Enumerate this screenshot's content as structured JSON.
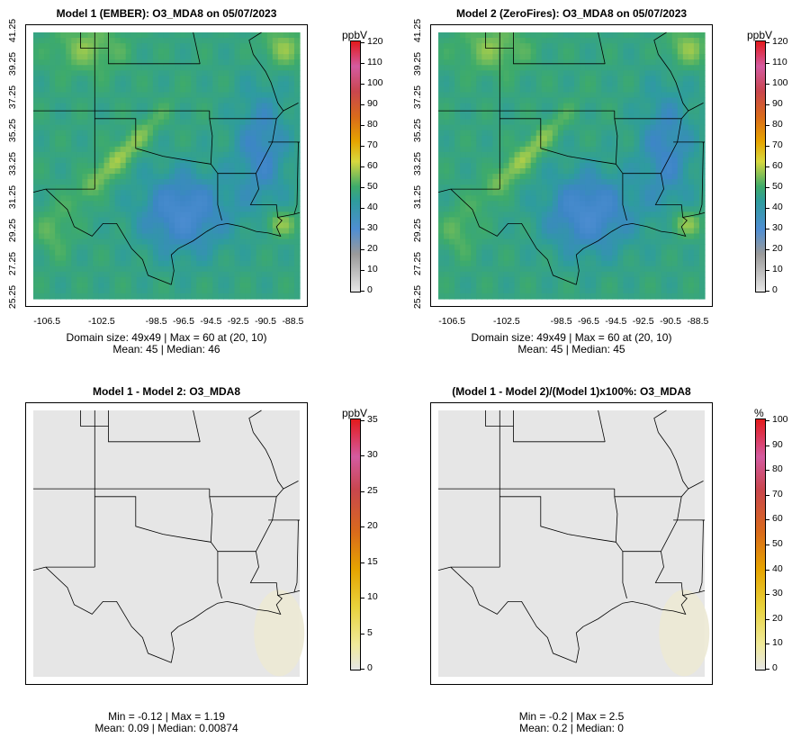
{
  "panels": [
    {
      "title": "Model 1 (EMBER): O3_MDA8 on 05/07/2023",
      "stats_line1": "Domain size: 49x49 | Max = 60 at (20, 10)",
      "stats_line2": "Mean: 45 |  Median: 46",
      "field": "ozone",
      "colorbar": {
        "unit": "ppbV",
        "ticks": [
          "120",
          "110",
          "100",
          "90",
          "80",
          "70",
          "60",
          "50",
          "40",
          "30",
          "20",
          "10",
          "0"
        ]
      },
      "show_axes": true
    },
    {
      "title": "Model 2 (ZeroFires): O3_MDA8 on 05/07/2023",
      "stats_line1": "Domain size: 49x49 | Max = 60 at (20, 10)",
      "stats_line2": "Mean: 45 |  Median: 45",
      "field": "ozone",
      "colorbar": {
        "unit": "ppbV",
        "ticks": [
          "120",
          "110",
          "100",
          "90",
          "80",
          "70",
          "60",
          "50",
          "40",
          "30",
          "20",
          "10",
          "0"
        ]
      },
      "show_axes": true
    },
    {
      "title": "Model 1 - Model 2: O3_MDA8",
      "stats_line1": "Min = -0.12 | Max = 1.19",
      "stats_line2": "Mean: 0.09 |  Median: 0.00874",
      "field": "diff",
      "colorbar": {
        "unit": "ppbV",
        "ticks": [
          "35",
          "30",
          "25",
          "20",
          "15",
          "10",
          "5",
          "0"
        ]
      },
      "show_axes": false
    },
    {
      "title": "(Model 1 - Model 2)/(Model 1)x100%: O3_MDA8",
      "stats_line1": "Min = -0.2 | Max = 2.5",
      "stats_line2": "Mean: 0.2 |  Median: 0",
      "field": "diff",
      "colorbar": {
        "unit": "%",
        "ticks": [
          "100",
          "90",
          "80",
          "70",
          "60",
          "50",
          "40",
          "30",
          "20",
          "10",
          "0"
        ]
      },
      "show_axes": false
    }
  ],
  "axes": {
    "y_ticks": [
      "41.25",
      "39.25",
      "37.25",
      "35.25",
      "33.25",
      "31.25",
      "29.25",
      "27.25",
      "25.25"
    ],
    "x_ticks": [
      "-106.5",
      "-102.5",
      "-98.5",
      "-96.5",
      "-94.5",
      "-92.5",
      "-90.5",
      "-88.5"
    ]
  },
  "colors": {
    "ozone_scale": [
      "#e6e6e6",
      "#9a9a9a",
      "#4f8ed3",
      "#3d86c6",
      "#2e9c9e",
      "#3eab6a",
      "#d8d83e",
      "#e6a400",
      "#d96a1b",
      "#c9464e",
      "#d45ba0",
      "#e31a1c"
    ],
    "diff_background": "#e6e6e6",
    "diff_tint": "#ece9d4"
  }
}
